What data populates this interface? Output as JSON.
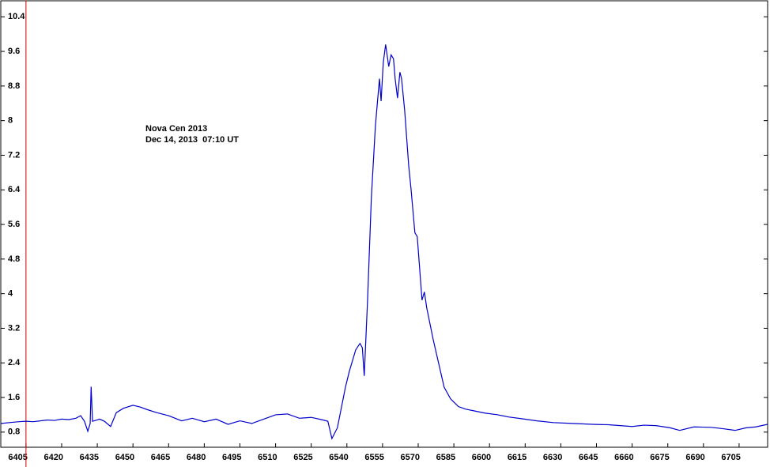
{
  "chart_data": {
    "type": "line",
    "annotations": [
      "Nova Cen 2013",
      "Dec 14, 2013  07:10 UT"
    ],
    "x": [
      6394.5,
      6398,
      6402,
      6405,
      6408,
      6411,
      6414,
      6417,
      6420,
      6423,
      6426,
      6428,
      6429.6,
      6431,
      6432,
      6432.4,
      6433,
      6436,
      6438,
      6440.6,
      6443,
      6446,
      6450,
      6453,
      6456,
      6460,
      6465,
      6470.5,
      6475,
      6480,
      6485,
      6490,
      6495,
      6500,
      6505,
      6510,
      6515,
      6520,
      6525,
      6530,
      6532,
      6533.7,
      6536,
      6539.4,
      6541,
      6543.7,
      6545.5,
      6546.5,
      6547.3,
      6548.7,
      6550.3,
      6552,
      6553.7,
      6554.4,
      6555.3,
      6556.3,
      6557.6,
      6558.6,
      6559.6,
      6560.3,
      6561.3,
      6562.3,
      6563,
      6564.3,
      6566,
      6567,
      6568.6,
      6569.6,
      6570.6,
      6571.6,
      6572.6,
      6573.6,
      6576.3,
      6578.6,
      6580.9,
      6583.6,
      6586.9,
      6590,
      6593.6,
      6598,
      6603.5,
      6608,
      6613.5,
      6620,
      6626.8,
      6635,
      6643.4,
      6650,
      6660,
      6665,
      6670,
      6676,
      6680,
      6686,
      6693.3,
      6698,
      6703.3,
      6708,
      6712,
      6717
    ],
    "series": [
      {
        "color": "#0000cc",
        "values": [
          1.0,
          1.02,
          1.04,
          1.05,
          1.04,
          1.06,
          1.08,
          1.07,
          1.1,
          1.09,
          1.12,
          1.18,
          1.05,
          0.82,
          1.0,
          1.85,
          1.05,
          1.1,
          1.05,
          0.93,
          1.25,
          1.35,
          1.42,
          1.38,
          1.32,
          1.25,
          1.18,
          1.06,
          1.12,
          1.04,
          1.1,
          0.98,
          1.06,
          1.0,
          1.1,
          1.2,
          1.22,
          1.12,
          1.14,
          1.08,
          1.05,
          0.65,
          0.9,
          1.84,
          2.2,
          2.7,
          2.85,
          2.75,
          2.1,
          3.85,
          6.23,
          7.88,
          8.97,
          8.45,
          9.34,
          9.76,
          9.25,
          9.52,
          9.43,
          8.97,
          8.52,
          9.12,
          8.97,
          8.24,
          6.96,
          6.41,
          5.41,
          5.32,
          4.59,
          3.85,
          4.04,
          3.67,
          2.94,
          2.39,
          1.84,
          1.57,
          1.39,
          1.33,
          1.29,
          1.24,
          1.2,
          1.15,
          1.11,
          1.06,
          1.02,
          1.0,
          0.98,
          0.97,
          0.93,
          0.96,
          0.95,
          0.9,
          0.84,
          0.92,
          0.91,
          0.88,
          0.84,
          0.9,
          0.92,
          0.98
        ]
      }
    ],
    "xlim": [
      6394.4,
      6717
    ],
    "ylim": [
      0.45,
      10.77
    ],
    "xticks": [
      6405,
      6420,
      6435,
      6450,
      6465,
      6480,
      6495,
      6510,
      6525,
      6540,
      6555,
      6570,
      6585,
      6600,
      6615,
      6630,
      6645,
      6660,
      6675,
      6690,
      6705
    ],
    "yticks": [
      0.8,
      1.6,
      2.4,
      3.2,
      4,
      4.8,
      5.6,
      6.4,
      7.2,
      8,
      8.8,
      9.6,
      10.4
    ]
  }
}
